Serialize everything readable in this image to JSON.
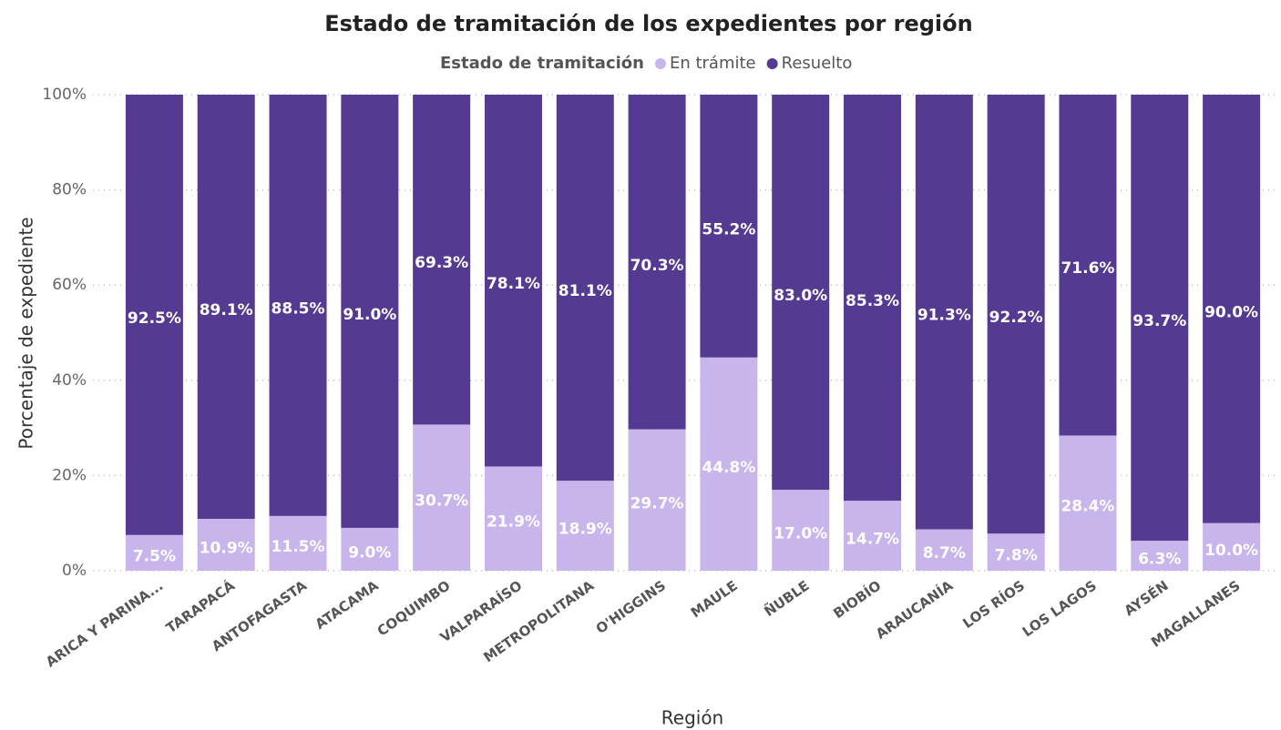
{
  "chart_data": {
    "type": "stacked_bar",
    "title": "Estado de tramitación de los expedientes por región",
    "legend_title": "Estado de tramitación",
    "x_label": "Región",
    "y_label": "Porcentaje de expediente",
    "categories": [
      "ARICA Y PARINA...",
      "TARAPACÁ",
      "ANTOFAGASTA",
      "ATACAMA",
      "COQUIMBO",
      "VALPARAÍSO",
      "METROPOLITANA",
      "O'HIGGINS",
      "MAULE",
      "ÑUBLE",
      "BIOBÍO",
      "ARAUCANÍA",
      "LOS RÍOS",
      "LOS LAGOS",
      "AYSÉN",
      "MAGALLANES"
    ],
    "series": [
      {
        "name": "En trámite",
        "color": "#c7b5ec",
        "values": [
          7.5,
          10.9,
          11.5,
          9.0,
          30.7,
          21.9,
          18.9,
          29.7,
          44.8,
          17.0,
          14.7,
          8.7,
          7.8,
          28.4,
          6.3,
          10.0
        ],
        "value_labels": [
          "7.5%",
          "10.9%",
          "11.5%",
          "9.0%",
          "30.7%",
          "21.9%",
          "18.9%",
          "29.7%",
          "44.8%",
          "17.0%",
          "14.7%",
          "8.7%",
          "7.8%",
          "28.4%",
          "6.3%",
          "10.0%"
        ]
      },
      {
        "name": "Resuelto",
        "color": "#553a91",
        "values": [
          92.5,
          89.1,
          88.5,
          91.0,
          69.3,
          78.1,
          81.1,
          70.3,
          55.2,
          83.0,
          85.3,
          91.3,
          92.2,
          71.6,
          93.7,
          90.0
        ],
        "value_labels": [
          "92.5%",
          "89.1%",
          "88.5%",
          "91.0%",
          "69.3%",
          "78.1%",
          "81.1%",
          "70.3%",
          "55.2%",
          "83.0%",
          "85.3%",
          "91.3%",
          "92.2%",
          "71.6%",
          "93.7%",
          "90.0%"
        ]
      }
    ],
    "ylim": [
      0,
      100
    ],
    "yticks": [
      {
        "value": 0,
        "label": "0%"
      },
      {
        "value": 20,
        "label": "20%"
      },
      {
        "value": 40,
        "label": "40%"
      },
      {
        "value": 60,
        "label": "60%"
      },
      {
        "value": 80,
        "label": "80%"
      },
      {
        "value": 100,
        "label": "100%"
      }
    ],
    "grid": true
  }
}
